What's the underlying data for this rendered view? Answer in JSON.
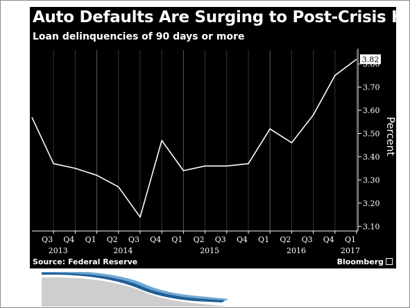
{
  "header": {
    "title": "Auto Defaults Are Surging to Post-Crisis Highs",
    "subtitle": "Loan delinquencies of 90 days or more"
  },
  "footer": {
    "source": "Source: Federal Reserve",
    "brand": "Bloomberg"
  },
  "colors": {
    "panel": "#000000",
    "line": "#ffffff",
    "axis": "#ffffff",
    "grid": "#4a4a4a",
    "slide_accent": "#1f5f96"
  },
  "chart_data": {
    "type": "line",
    "title": "Auto Defaults Are Surging to Post-Crisis Highs",
    "subtitle": "Loan delinquencies of 90 days or more",
    "ylabel": "Percent",
    "ylim": [
      3.08,
      3.86
    ],
    "y_ticks": [
      "3.10",
      "3.20",
      "3.30",
      "3.40",
      "3.50",
      "3.60",
      "3.70",
      "3.80"
    ],
    "quarter_labels": [
      "Q3",
      "Q4",
      "Q1",
      "Q2",
      "Q3",
      "Q4",
      "Q1",
      "Q2",
      "Q3",
      "Q4",
      "Q1",
      "Q2",
      "Q3",
      "Q4",
      "Q1"
    ],
    "year_labels": [
      {
        "label": "2013",
        "start": 0,
        "end": 1
      },
      {
        "label": "2014",
        "start": 2,
        "end": 5
      },
      {
        "label": "2015",
        "start": 6,
        "end": 9
      },
      {
        "label": "2016",
        "start": 10,
        "end": 13
      },
      {
        "label": "2017",
        "start": 14,
        "end": 14
      }
    ],
    "x": [
      "2013 Q2",
      "2013 Q3",
      "2013 Q4",
      "2014 Q1",
      "2014 Q2",
      "2014 Q3",
      "2014 Q4",
      "2015 Q1",
      "2015 Q2",
      "2015 Q3",
      "2015 Q4",
      "2016 Q1",
      "2016 Q2",
      "2016 Q3",
      "2016 Q4",
      "2017 Q1"
    ],
    "values": [
      3.57,
      3.37,
      3.35,
      3.32,
      3.27,
      3.14,
      3.47,
      3.34,
      3.36,
      3.36,
      3.37,
      3.52,
      3.46,
      3.58,
      3.75,
      3.82
    ],
    "last_value_label": "3.82",
    "grid": "vertical"
  }
}
